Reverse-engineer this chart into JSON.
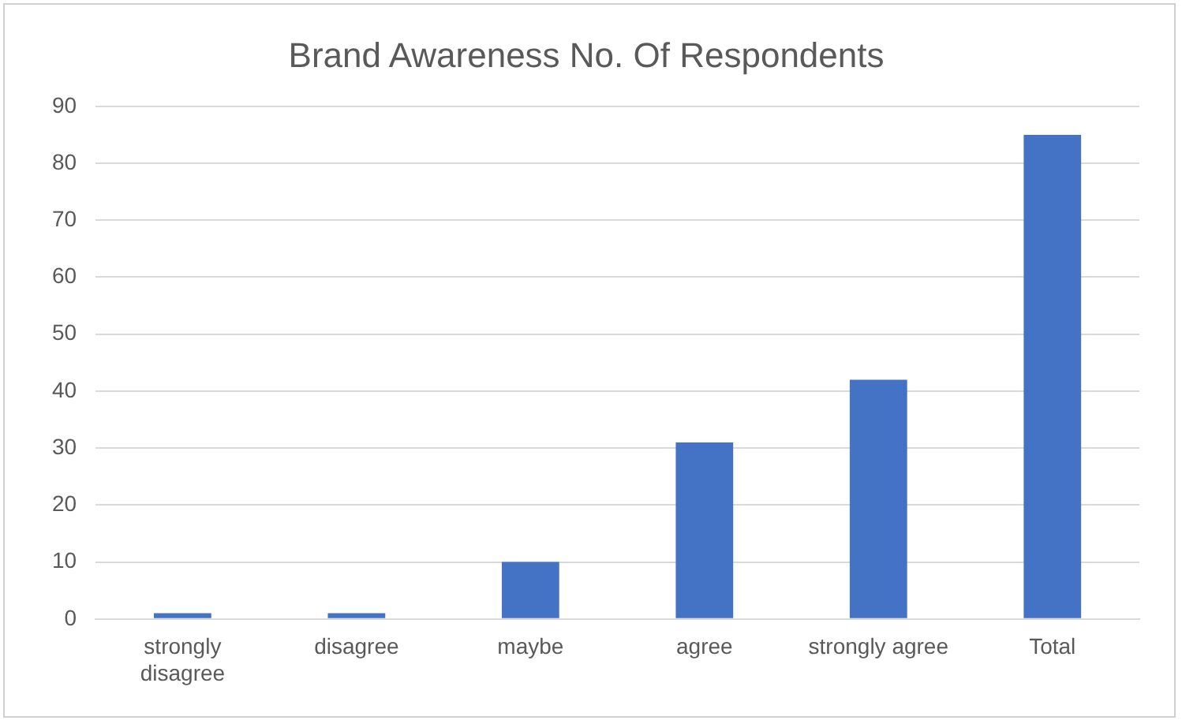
{
  "chart_data": {
    "type": "bar",
    "title": "Brand Awareness No. Of Respondents",
    "categories": [
      "strongly disagree",
      "disagree",
      "maybe",
      "agree",
      "strongly agree",
      "Total"
    ],
    "values": [
      1,
      1,
      10,
      31,
      42,
      85
    ],
    "color": "#4472c4",
    "ylim": [
      0,
      90
    ],
    "yticks": [
      0,
      10,
      20,
      30,
      40,
      50,
      60,
      70,
      80,
      90
    ],
    "grid": "y",
    "legend": false
  }
}
